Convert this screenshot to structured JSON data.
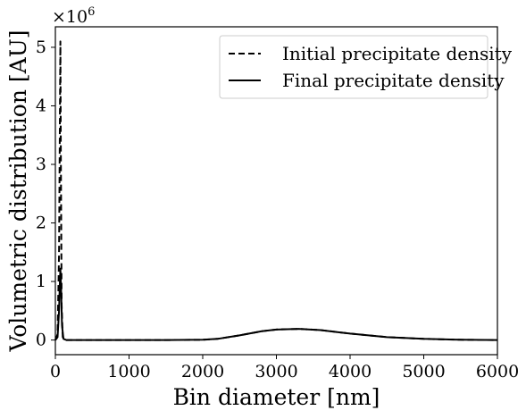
{
  "chart_data": {
    "type": "line",
    "xlabel": "Bin diameter [nm]",
    "ylabel": "Volumetric distribution [AU]",
    "y_offset_text": "×10",
    "y_offset_exponent": "6",
    "xlim": [
      0,
      6000
    ],
    "ylim": [
      -0.25,
      5.35
    ],
    "x_ticks": [
      0,
      1000,
      2000,
      3000,
      4000,
      5000,
      6000
    ],
    "x_tick_labels": [
      "0",
      "1000",
      "2000",
      "3000",
      "4000",
      "5000",
      "6000"
    ],
    "y_ticks": [
      0,
      1,
      2,
      3,
      4,
      5
    ],
    "y_tick_labels": [
      "0",
      "1",
      "2",
      "3",
      "4",
      "5"
    ],
    "y_scale_factor": 1000000,
    "grid": false,
    "legend_position": "top-right",
    "series": [
      {
        "name": "Initial precipitate density",
        "style": "dashed",
        "color": "#000000",
        "points": [
          [
            0,
            0
          ],
          [
            30,
            0.1
          ],
          [
            50,
            1.5
          ],
          [
            60,
            3.5
          ],
          [
            68,
            5.1
          ],
          [
            75,
            3.0
          ],
          [
            85,
            0.6
          ],
          [
            100,
            0.05
          ],
          [
            130,
            0.0
          ],
          [
            500,
            0.0
          ],
          [
            1000,
            0.0
          ],
          [
            1500,
            0.0
          ],
          [
            2000,
            0.005
          ],
          [
            2200,
            0.02
          ],
          [
            2500,
            0.08
          ],
          [
            2800,
            0.15
          ],
          [
            3000,
            0.18
          ],
          [
            3300,
            0.19
          ],
          [
            3600,
            0.17
          ],
          [
            4000,
            0.11
          ],
          [
            4500,
            0.05
          ],
          [
            5000,
            0.02
          ],
          [
            5500,
            0.005
          ],
          [
            6000,
            0.0
          ]
        ]
      },
      {
        "name": "Final precipitate density",
        "style": "solid",
        "color": "#000000",
        "points": [
          [
            0,
            0
          ],
          [
            30,
            0.05
          ],
          [
            50,
            0.5
          ],
          [
            60,
            0.95
          ],
          [
            68,
            1.22
          ],
          [
            78,
            0.85
          ],
          [
            90,
            0.25
          ],
          [
            110,
            0.02
          ],
          [
            150,
            0.0
          ],
          [
            500,
            0.0
          ],
          [
            1000,
            0.0
          ],
          [
            1500,
            0.0
          ],
          [
            2000,
            0.005
          ],
          [
            2200,
            0.02
          ],
          [
            2500,
            0.08
          ],
          [
            2800,
            0.15
          ],
          [
            3000,
            0.18
          ],
          [
            3300,
            0.19
          ],
          [
            3600,
            0.17
          ],
          [
            4000,
            0.11
          ],
          [
            4500,
            0.05
          ],
          [
            5000,
            0.02
          ],
          [
            5500,
            0.005
          ],
          [
            6000,
            0.0
          ]
        ]
      }
    ]
  }
}
